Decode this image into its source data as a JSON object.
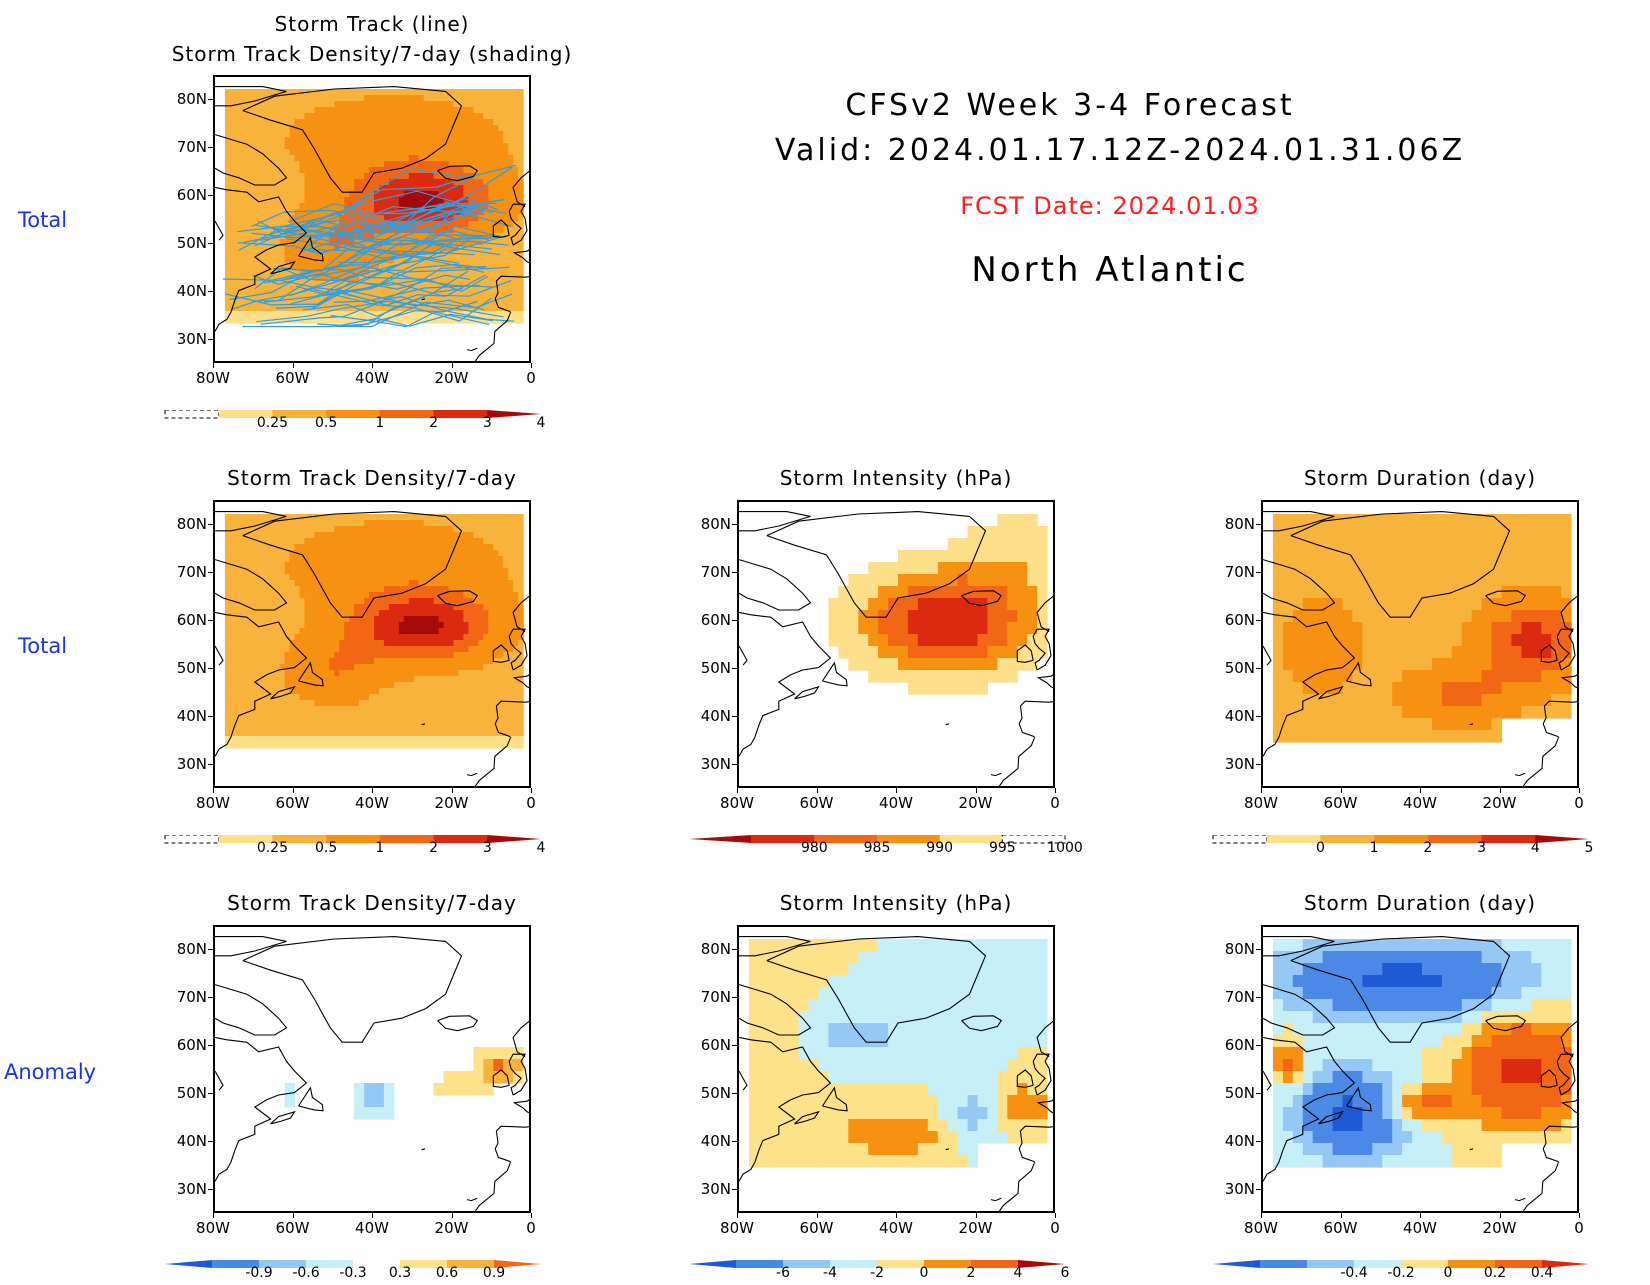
{
  "header": {
    "line1": "CFSv2  Week  3-4  Forecast",
    "line2": "Valid:  2024.01.17.12Z-2024.01.31.06Z",
    "fcst": "FCST Date: 2024.01.03",
    "region": "North  Atlantic",
    "fcst_color": "#ff2020"
  },
  "row_labels": [
    "Total",
    "Total",
    "Anomaly"
  ],
  "axes": {
    "y_ticks": [
      "80N",
      "70N",
      "60N",
      "50N",
      "40N",
      "30N"
    ],
    "x_ticks": [
      "80W",
      "60W",
      "40W",
      "20W",
      "0"
    ]
  },
  "panels": [
    {
      "id": "p1",
      "title_lines": [
        "Storm Track (line)",
        "Storm Track Density/7-day (shading)"
      ],
      "field": "density",
      "tracks": true,
      "colorbar": "density"
    },
    {
      "id": "p2",
      "title_lines": [
        "Storm Track Density/7-day"
      ],
      "field": "density",
      "tracks": false,
      "colorbar": "density"
    },
    {
      "id": "p3",
      "title_lines": [
        "Storm Intensity (hPa)"
      ],
      "field": "intensity",
      "tracks": false,
      "colorbar": "intensity"
    },
    {
      "id": "p4",
      "title_lines": [
        "Storm Duration (day)"
      ],
      "field": "duration",
      "tracks": false,
      "colorbar": "duration"
    },
    {
      "id": "p5",
      "title_lines": [
        "Storm Track Density/7-day"
      ],
      "field": "density_anom",
      "tracks": false,
      "colorbar": "density_anom"
    },
    {
      "id": "p6",
      "title_lines": [
        "Storm Intensity (hPa)"
      ],
      "field": "intensity_anom",
      "tracks": false,
      "colorbar": "intensity_anom"
    },
    {
      "id": "p7",
      "title_lines": [
        "Storm Duration (day)"
      ],
      "field": "duration_anom",
      "tracks": false,
      "colorbar": "duration_anom"
    }
  ],
  "colorbars": {
    "density": {
      "labels": [
        "0.25",
        "0.5",
        "1",
        "2",
        "3",
        "4"
      ],
      "colors": [
        "#fff6b3",
        "#fde089",
        "#f8b33c",
        "#f79111",
        "#f26715",
        "#dc2a10",
        "#a50a0a"
      ],
      "dashed_left": true,
      "arrow_right": true
    },
    "intensity": {
      "labels": [
        "980",
        "985",
        "990",
        "995",
        "1000"
      ],
      "colors": [
        "#a50a0a",
        "#dc2a10",
        "#f26715",
        "#f79111",
        "#fde089",
        "#fff6b3"
      ],
      "dashed_right": true,
      "arrow_left": true
    },
    "duration": {
      "labels": [
        "0",
        "1",
        "2",
        "3",
        "4",
        "5"
      ],
      "colors": [
        "#fff6b3",
        "#fde089",
        "#f8b33c",
        "#f79111",
        "#f26715",
        "#dc2a10",
        "#a50a0a"
      ],
      "dashed_left": true,
      "arrow_right": true
    },
    "density_anom": {
      "labels": [
        "-0.9",
        "-0.6",
        "-0.3",
        "0.3",
        "0.6",
        "0.9"
      ],
      "colors": [
        "#1d5ad4",
        "#4a8ae6",
        "#95c8f5",
        "#c6eff8",
        "#ffffff",
        "#fde28a",
        "#f8b33c",
        "#f26715"
      ],
      "arrow_left": true,
      "arrow_right": true
    },
    "intensity_anom": {
      "labels": [
        "-6",
        "-4",
        "-2",
        "0",
        "2",
        "4",
        "6"
      ],
      "colors": [
        "#1d5ad4",
        "#4a8ae6",
        "#95c8f5",
        "#c6eff8",
        "#fde28a",
        "#f79111",
        "#f26715",
        "#a50a0a"
      ],
      "arrow_left": true,
      "arrow_right": true
    },
    "duration_anom": {
      "labels": [
        "-0.4",
        "-0.2",
        "0",
        "0.2",
        "0.4"
      ],
      "colors": [
        "#1d5ad4",
        "#4a8ae6",
        "#95c8f5",
        "#c6eff8",
        "#fde28a",
        "#f79111",
        "#f26715",
        "#dc2a10"
      ],
      "arrow_left": true,
      "arrow_right": true
    }
  }
}
